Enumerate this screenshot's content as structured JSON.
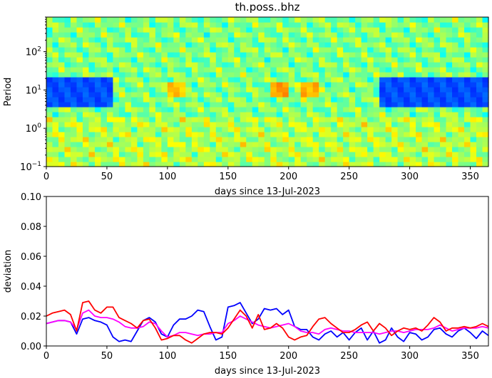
{
  "chart_data": [
    {
      "type": "heatmap",
      "title": "th.poss..bhz",
      "xlabel": "days since 13-Jul-2023",
      "ylabel": "Period",
      "xlim": [
        0,
        365
      ],
      "ylim": [
        0.1,
        800
      ],
      "yscale": "log",
      "x_ticks": [
        "0",
        "50",
        "100",
        "150",
        "200",
        "250",
        "300",
        "350"
      ],
      "y_ticks": [
        {
          "base": "10",
          "exp": "−1"
        },
        {
          "base": "10",
          "exp": "0"
        },
        {
          "base": "10",
          "exp": "1"
        },
        {
          "base": "10",
          "exp": "2"
        }
      ],
      "colormap": "jet",
      "features": [
        {
          "x": [
            0,
            55
          ],
          "period": [
            4,
            20
          ],
          "level": 0.2
        },
        {
          "x": [
            275,
            365
          ],
          "period": [
            4,
            20
          ],
          "level": 0.2
        },
        {
          "x": [
            100,
            115
          ],
          "period": [
            6,
            16
          ],
          "level": 0.68
        },
        {
          "x": [
            185,
            200
          ],
          "period": [
            6,
            16
          ],
          "level": 0.72
        },
        {
          "x": [
            210,
            225
          ],
          "period": [
            6,
            16
          ],
          "level": 0.7
        }
      ]
    },
    {
      "type": "line",
      "xlabel": "days since 13-Jul-2023",
      "ylabel": "deviation",
      "xlim": [
        0,
        365
      ],
      "ylim": [
        0,
        0.1
      ],
      "x_ticks": [
        "0",
        "50",
        "100",
        "150",
        "200",
        "250",
        "300",
        "350"
      ],
      "y_ticks": [
        "0.00",
        "0.02",
        "0.04",
        "0.06",
        "0.08",
        "0.10"
      ],
      "x": [
        0,
        5,
        10,
        15,
        20,
        25,
        30,
        35,
        40,
        45,
        50,
        55,
        60,
        65,
        70,
        75,
        80,
        85,
        90,
        95,
        100,
        105,
        110,
        115,
        120,
        125,
        130,
        135,
        140,
        145,
        150,
        155,
        160,
        165,
        170,
        175,
        180,
        185,
        190,
        195,
        200,
        205,
        210,
        215,
        220,
        225,
        230,
        235,
        240,
        245,
        250,
        255,
        260,
        265,
        270,
        275,
        280,
        285,
        290,
        295,
        300,
        305,
        310,
        315,
        320,
        325,
        330,
        335,
        340,
        345,
        350,
        355,
        360,
        365
      ],
      "series": [
        {
          "color": "#0000ff",
          "values": [
            0.015,
            0.016,
            0.017,
            0.017,
            0.016,
            0.008,
            0.018,
            0.019,
            0.017,
            0.016,
            0.014,
            0.006,
            0.003,
            0.004,
            0.003,
            0.01,
            0.017,
            0.019,
            0.016,
            0.008,
            0.006,
            0.014,
            0.018,
            0.018,
            0.02,
            0.024,
            0.023,
            0.013,
            0.004,
            0.006,
            0.026,
            0.027,
            0.029,
            0.022,
            0.015,
            0.018,
            0.025,
            0.024,
            0.025,
            0.021,
            0.024,
            0.013,
            0.011,
            0.011,
            0.006,
            0.004,
            0.008,
            0.01,
            0.006,
            0.009,
            0.004,
            0.009,
            0.012,
            0.004,
            0.01,
            0.002,
            0.004,
            0.012,
            0.006,
            0.003,
            0.009,
            0.008,
            0.004,
            0.006,
            0.011,
            0.012,
            0.008,
            0.006,
            0.01,
            0.012,
            0.009,
            0.005,
            0.01,
            0.007
          ]
        },
        {
          "color": "#ff00ff",
          "values": [
            0.015,
            0.016,
            0.017,
            0.017,
            0.016,
            0.011,
            0.022,
            0.024,
            0.02,
            0.019,
            0.019,
            0.018,
            0.016,
            0.013,
            0.012,
            0.012,
            0.013,
            0.016,
            0.015,
            0.01,
            0.006,
            0.007,
            0.009,
            0.009,
            0.008,
            0.007,
            0.008,
            0.008,
            0.009,
            0.009,
            0.015,
            0.017,
            0.02,
            0.018,
            0.016,
            0.014,
            0.013,
            0.012,
            0.013,
            0.014,
            0.015,
            0.013,
            0.01,
            0.009,
            0.009,
            0.008,
            0.011,
            0.012,
            0.011,
            0.01,
            0.01,
            0.009,
            0.009,
            0.009,
            0.009,
            0.008,
            0.009,
            0.01,
            0.01,
            0.009,
            0.01,
            0.011,
            0.011,
            0.011,
            0.012,
            0.014,
            0.012,
            0.01,
            0.011,
            0.012,
            0.012,
            0.012,
            0.013,
            0.012
          ]
        },
        {
          "color": "#ff0000",
          "values": [
            0.02,
            0.022,
            0.023,
            0.024,
            0.021,
            0.01,
            0.029,
            0.03,
            0.024,
            0.022,
            0.026,
            0.026,
            0.019,
            0.017,
            0.015,
            0.012,
            0.017,
            0.018,
            0.012,
            0.004,
            0.005,
            0.007,
            0.007,
            0.004,
            0.002,
            0.005,
            0.008,
            0.009,
            0.009,
            0.008,
            0.012,
            0.018,
            0.024,
            0.02,
            0.012,
            0.021,
            0.011,
            0.012,
            0.015,
            0.012,
            0.006,
            0.004,
            0.006,
            0.007,
            0.013,
            0.018,
            0.019,
            0.015,
            0.012,
            0.009,
            0.009,
            0.011,
            0.014,
            0.016,
            0.01,
            0.015,
            0.012,
            0.007,
            0.01,
            0.012,
            0.011,
            0.012,
            0.01,
            0.014,
            0.019,
            0.016,
            0.01,
            0.012,
            0.012,
            0.013,
            0.012,
            0.013,
            0.015,
            0.013
          ]
        }
      ]
    }
  ]
}
